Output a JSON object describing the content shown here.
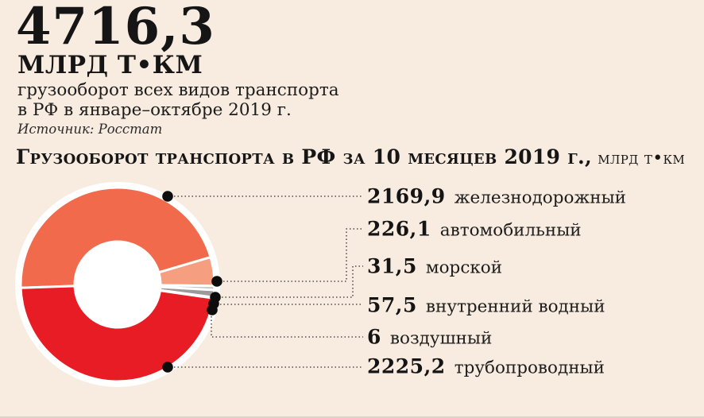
{
  "header": {
    "big_number": "4716,3",
    "unit": "МЛРД Т•КМ",
    "description_line1": "грузооборот всех видов транспорта",
    "description_line2": "в РФ в январе–октябре 2019 г.",
    "source": "Источник: Росстат"
  },
  "chart_title": {
    "main": "Грузооборот транспорта в РФ за 10 месяцев 2019 г.,",
    "unit": " млрд т•км"
  },
  "chart_data": {
    "type": "pie",
    "subtype": "donut",
    "title": "Грузооборот транспорта в РФ за 10 месяцев 2019 г., млрд т•км",
    "total_label": "4716,3",
    "total_value": 4716.3,
    "unit": "млрд т•км",
    "categories": [
      "железнодорожный",
      "автомобильный",
      "морской",
      "внутренний водный",
      "воздушный",
      "трубопроводный"
    ],
    "values": [
      2169.9,
      226.1,
      31.5,
      57.5,
      6,
      2225.2
    ],
    "value_labels": [
      "2169,9",
      "226,1",
      "31,5",
      "57,5",
      "6",
      "2225,2"
    ],
    "colors": [
      "#f26a4c",
      "#f59e80",
      "#c3c3c3",
      "#9a9a9a",
      "#ffffff",
      "#e81c24"
    ],
    "start_angle_deg": 182,
    "direction": "clockwise",
    "legend_position": "right",
    "source": "Росстат"
  },
  "style_colors": {
    "background": "#f8ece1",
    "ring_white": "#ffffff",
    "leader_line": "#2b2b2b",
    "dot": "#0d0d0d"
  }
}
